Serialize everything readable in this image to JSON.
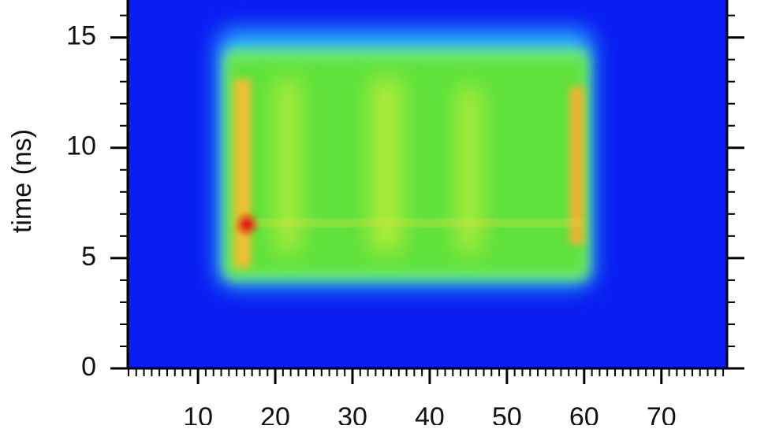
{
  "chart_data": {
    "type": "heatmap",
    "ylabel": "time (ns)",
    "xlim": [
      0.9,
      78.5
    ],
    "xticks": [
      10,
      20,
      30,
      40,
      50,
      60,
      70
    ],
    "ylim": [
      0,
      16.7
    ],
    "yticks": [
      0,
      5,
      10,
      15
    ]
  }
}
